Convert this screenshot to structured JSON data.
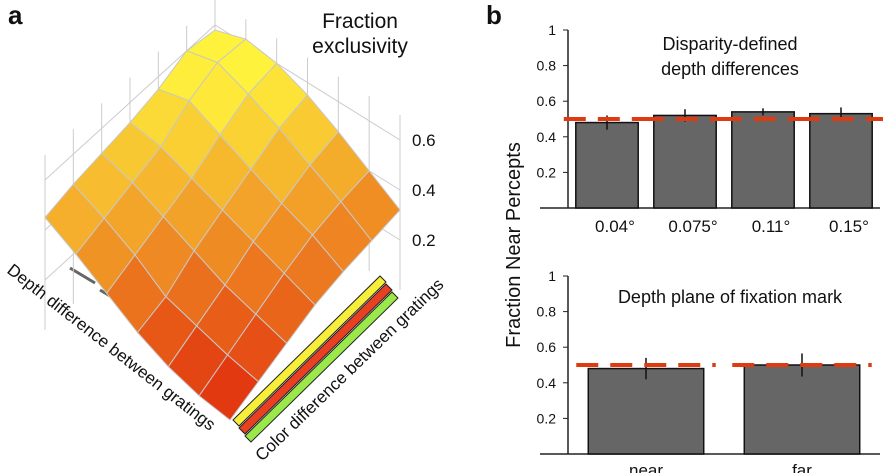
{
  "chart_data": [
    {
      "type": "surface",
      "panel_label": "a",
      "title_lines": [
        "Fraction",
        "exclusivity"
      ],
      "xlabel": "Depth difference between gratings",
      "ylabel": "Color difference between gratings",
      "z": [
        [
          0.58,
          0.62,
          0.6,
          0.55,
          0.48,
          0.4,
          0.32
        ],
        [
          0.6,
          0.63,
          0.58,
          0.52,
          0.45,
          0.38,
          0.3
        ],
        [
          0.55,
          0.58,
          0.52,
          0.46,
          0.4,
          0.35,
          0.28
        ],
        [
          0.52,
          0.5,
          0.45,
          0.4,
          0.35,
          0.3,
          0.25
        ],
        [
          0.5,
          0.46,
          0.4,
          0.34,
          0.28,
          0.24,
          0.2
        ],
        [
          0.48,
          0.42,
          0.35,
          0.26,
          0.22,
          0.18,
          0.15
        ],
        [
          0.45,
          0.38,
          0.3,
          0.22,
          0.16,
          0.12,
          0.1
        ]
      ],
      "zlim": [
        0,
        0.7
      ],
      "zticks": [
        0.2,
        0.4,
        0.6
      ],
      "colormap": [
        "#e02a0c",
        "#fff23c"
      ]
    },
    {
      "type": "bar",
      "panel_label": "b",
      "title_lines": [
        "Disparity-defined",
        "depth differences"
      ],
      "ylabel": "Fraction Near Percepts",
      "categories": [
        "0.04°",
        "0.075°",
        "0.11°",
        "0.15°"
      ],
      "values": [
        0.48,
        0.52,
        0.54,
        0.53
      ],
      "errors": [
        0.04,
        0.035,
        0.02,
        0.035
      ],
      "reference": [
        0.5,
        0.5,
        0.5,
        0.5
      ],
      "color": "#666666",
      "reference_color": "#e03a10",
      "ylim": [
        0,
        1
      ],
      "yticks": [
        0.2,
        0.4,
        0.6,
        0.8,
        1
      ]
    },
    {
      "type": "bar",
      "title_lines": [
        "Depth plane of fixation mark"
      ],
      "categories": [
        "near",
        "far"
      ],
      "values": [
        0.48,
        0.5
      ],
      "errors": [
        0.06,
        0.065
      ],
      "reference": [
        0.5,
        0.5
      ],
      "color": "#666666",
      "reference_color": "#e03a10",
      "ylim": [
        0,
        1
      ],
      "yticks": [
        0.2,
        0.4,
        0.6,
        0.8,
        1
      ]
    }
  ]
}
